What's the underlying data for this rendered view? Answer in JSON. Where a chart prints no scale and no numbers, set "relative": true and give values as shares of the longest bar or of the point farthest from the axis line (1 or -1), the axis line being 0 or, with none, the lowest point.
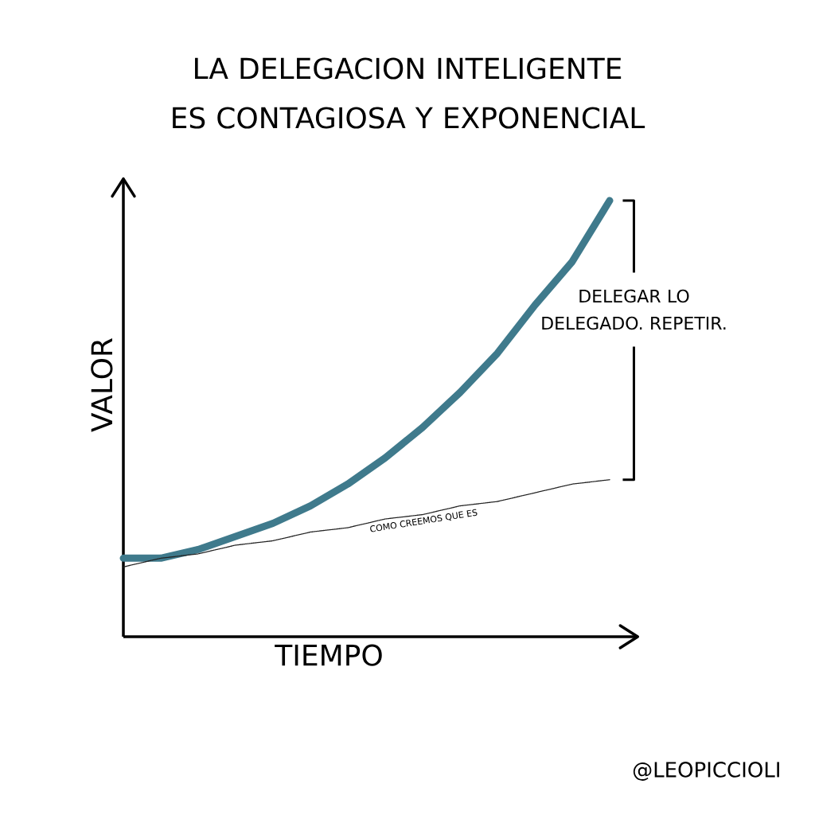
{
  "chart_data": {
    "type": "line",
    "title": "LA DELEGACION INTELIGENTE ES CONTAGIOSA Y EXPONENCIAL",
    "xlabel": "TIEMPO",
    "ylabel": "VALOR",
    "relative": true,
    "categories": [
      null,
      null,
      null,
      null,
      null,
      null,
      null,
      null,
      null,
      null,
      null,
      null,
      null,
      null
    ],
    "series": [
      {
        "color": "#3f7a8c",
        "line_style": "solid",
        "values": [
          0.18,
          0.18,
          0.2,
          0.23,
          0.26,
          0.3,
          0.35,
          0.41,
          0.48,
          0.56,
          0.65,
          0.76,
          0.86,
          1.0
        ]
      },
      {
        "name": "COMO CREEMOS QUE ES",
        "color": "#222222",
        "line_style": "dotted",
        "values": [
          0.16,
          0.18,
          0.19,
          0.21,
          0.22,
          0.24,
          0.25,
          0.27,
          0.28,
          0.3,
          0.31,
          0.33,
          0.35,
          0.36
        ]
      }
    ],
    "annotations": [
      "DELEGAR LO DELEGADO. REPETIR.",
      "@LEOPICCIOLI"
    ]
  }
}
